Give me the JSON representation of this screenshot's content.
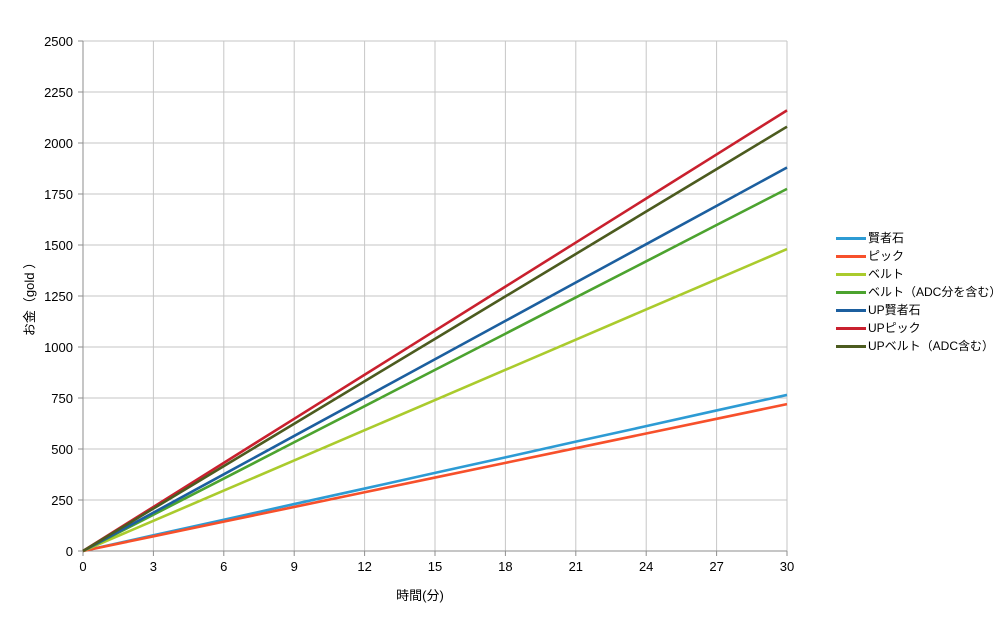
{
  "chart_data": {
    "type": "line",
    "title": "",
    "xlabel": "時間(分)",
    "ylabel": "お金（gold ）",
    "xlim": [
      0,
      30
    ],
    "ylim": [
      0,
      2500
    ],
    "xticks": [
      0,
      3,
      6,
      9,
      12,
      15,
      18,
      21,
      24,
      27,
      30
    ],
    "yticks": [
      0,
      250,
      500,
      750,
      1000,
      1250,
      1500,
      1750,
      2000,
      2250,
      2500
    ],
    "grid": true,
    "legend_position": "right",
    "x": [
      0,
      3,
      6,
      9,
      12,
      15,
      18,
      21,
      24,
      27,
      30
    ],
    "series": [
      {
        "name": "賢者石",
        "color": "#2D9BD4",
        "values": [
          0,
          77,
          153,
          230,
          306,
          383,
          459,
          536,
          612,
          689,
          765
        ]
      },
      {
        "name": "ピック",
        "color": "#F7502B",
        "values": [
          0,
          72,
          144,
          216,
          288,
          360,
          432,
          504,
          576,
          648,
          720
        ]
      },
      {
        "name": "ベルト",
        "color": "#AACB2D",
        "values": [
          0,
          148,
          296,
          444,
          592,
          740,
          888,
          1036,
          1184,
          1332,
          1480
        ]
      },
      {
        "name": "ベルト（ADC分を含む）",
        "color": "#4CA32F",
        "values": [
          0,
          178,
          355,
          533,
          710,
          888,
          1065,
          1243,
          1420,
          1598,
          1775
        ]
      },
      {
        "name": "UP賢者石",
        "color": "#1C5F9F",
        "values": [
          0,
          188,
          376,
          564,
          752,
          940,
          1128,
          1316,
          1504,
          1692,
          1880
        ]
      },
      {
        "name": "UPピック",
        "color": "#C9202E",
        "values": [
          0,
          216,
          432,
          648,
          864,
          1080,
          1296,
          1512,
          1728,
          1944,
          2160
        ]
      },
      {
        "name": "UPベルト（ADC含む）",
        "color": "#4C5B1F",
        "values": [
          0,
          208,
          416,
          624,
          832,
          1040,
          1248,
          1456,
          1664,
          1872,
          2080
        ]
      }
    ],
    "axis_color": "#8E8E8E",
    "grid_color": "#C6C6C6"
  }
}
